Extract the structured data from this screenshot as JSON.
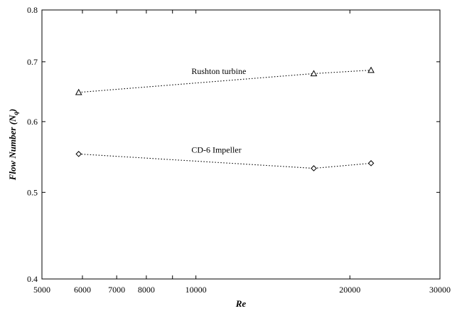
{
  "chart_data": {
    "type": "scatter",
    "x_scale": "log",
    "y_scale": "log",
    "xlim": [
      5000,
      30000
    ],
    "ylim": [
      0.4,
      0.8
    ],
    "xlabel": "Re",
    "ylabel": "Flow Number (N",
    "ylabel_sub": "q",
    "ylabel_end": ")",
    "x_ticks": [
      5000,
      6000,
      7000,
      8000,
      10000,
      20000,
      30000
    ],
    "x_tick_labels": [
      "5000",
      "6000",
      "7000",
      "8000",
      "10000",
      "20000",
      "30000"
    ],
    "x_minor_ticks": [
      9000
    ],
    "y_ticks": [
      0.4,
      0.5,
      0.6,
      0.7,
      0.8
    ],
    "y_tick_labels": [
      "0.4",
      "0.5",
      "0.6",
      "0.7",
      "0.8"
    ],
    "grid": false,
    "series": [
      {
        "name": "Rushton turbine",
        "marker": "triangle",
        "line": "dotted",
        "label_at": [
          9800,
          0.678
        ],
        "x": [
          5900,
          17000,
          22000
        ],
        "y": [
          0.647,
          0.679,
          0.685
        ]
      },
      {
        "name": "CD-6 Impeller",
        "marker": "diamond",
        "line": "dotted",
        "label_at": [
          9800,
          0.554
        ],
        "x": [
          5900,
          17000,
          22000
        ],
        "y": [
          0.552,
          0.532,
          0.539
        ]
      }
    ]
  }
}
